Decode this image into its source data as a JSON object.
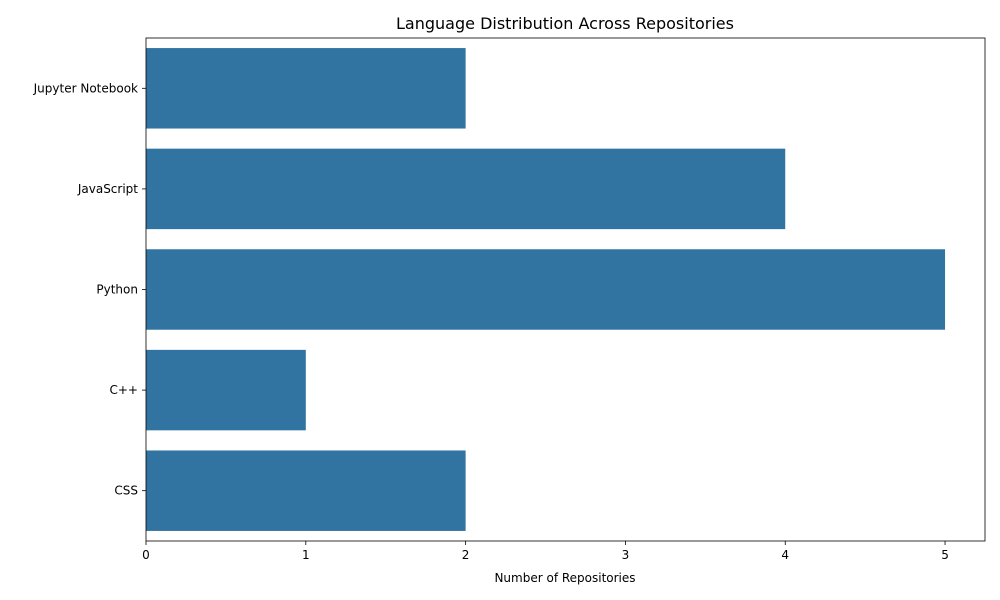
{
  "chart_data": {
    "type": "bar",
    "orientation": "horizontal",
    "title": "Language Distribution Across Repositories",
    "xlabel": "Number of Repositories",
    "ylabel": "",
    "categories": [
      "Jupyter Notebook",
      "JavaScript",
      "Python",
      "C++",
      "CSS"
    ],
    "values": [
      2,
      4,
      5,
      1,
      2
    ],
    "xlim": [
      0,
      5.25
    ],
    "xticks": [
      "0",
      "1",
      "2",
      "3",
      "4",
      "5"
    ],
    "bar_color": "#3274a1",
    "grid": false,
    "legend": "none"
  }
}
